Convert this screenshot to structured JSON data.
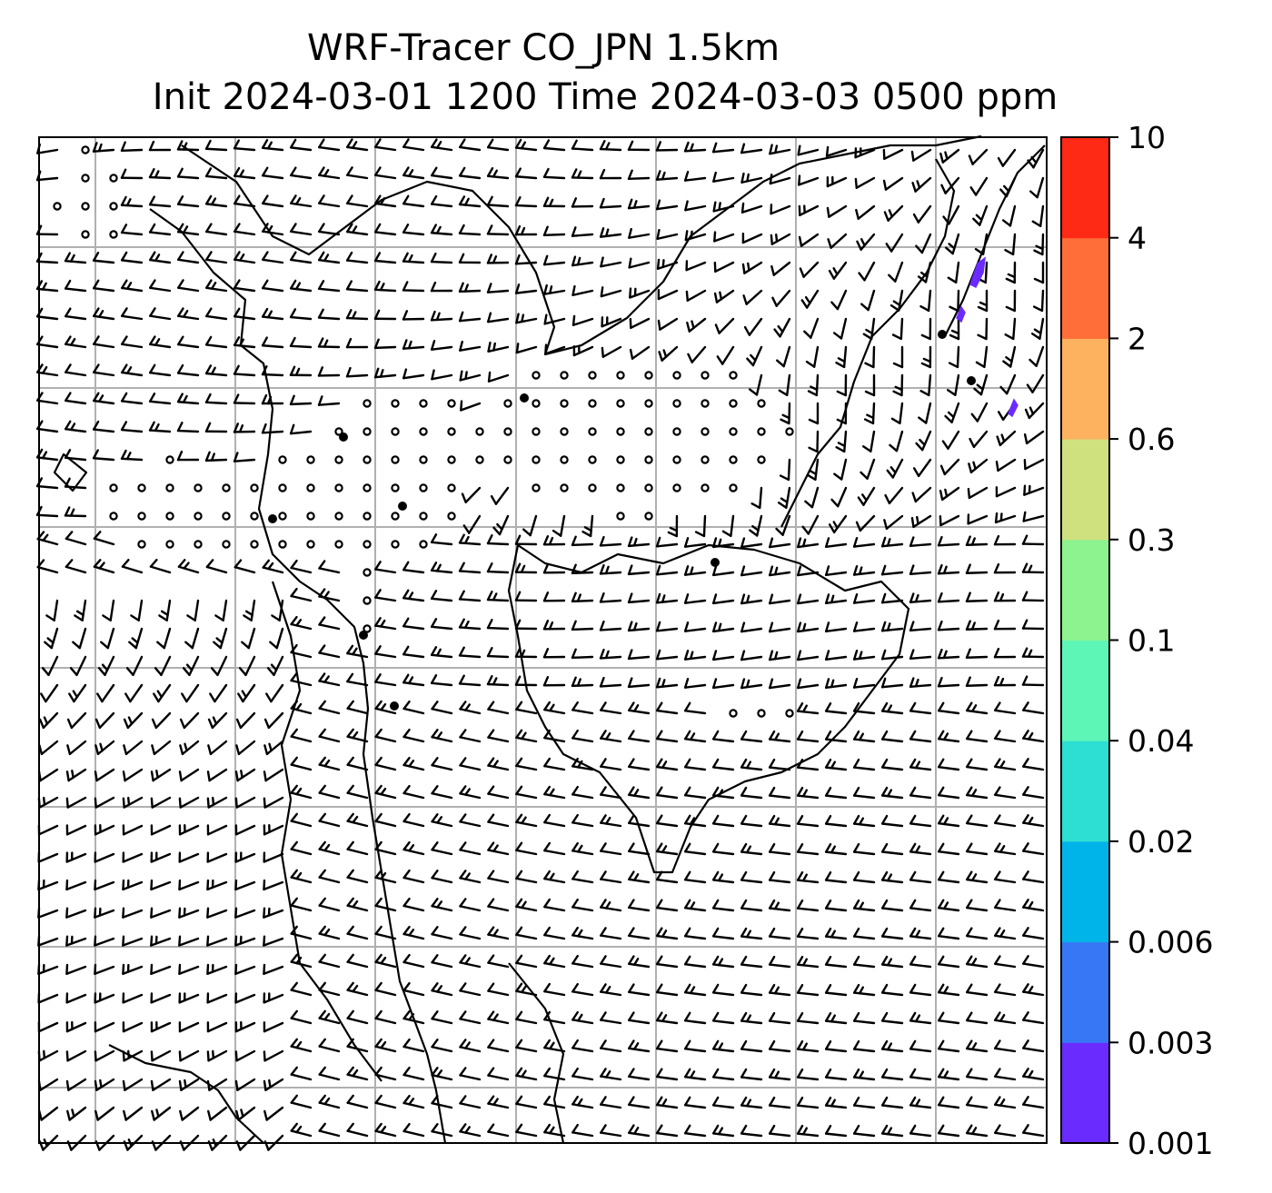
{
  "title": {
    "line1": "WRF-Tracer CO_JPN 1.5km",
    "line2": "Init 2024-03-01 1200 Time 2024-03-03 0500 ppm"
  },
  "map": {
    "gridlines": true,
    "coastline_color": "#000000",
    "gridline_color": "#b0b0b0",
    "barb_color": "#000000"
  },
  "colorbar": {
    "levels": [
      "0.001",
      "0.003",
      "0.006",
      "0.02",
      "0.04",
      "0.1",
      "0.3",
      "0.6",
      "2",
      "4",
      "10"
    ],
    "colors": [
      "#6a2bff",
      "#3777f6",
      "#00b4ea",
      "#2ddfd2",
      "#5ef6b6",
      "#8cf38e",
      "#cfe07f",
      "#fdb25f",
      "#ff6e39",
      "#ff2a16"
    ]
  },
  "tracer_patches": [
    {
      "level": "0.001",
      "color": "#6a2bff"
    },
    {
      "level": "0.001",
      "color": "#6a2bff"
    },
    {
      "level": "0.001",
      "color": "#6a2bff"
    }
  ]
}
